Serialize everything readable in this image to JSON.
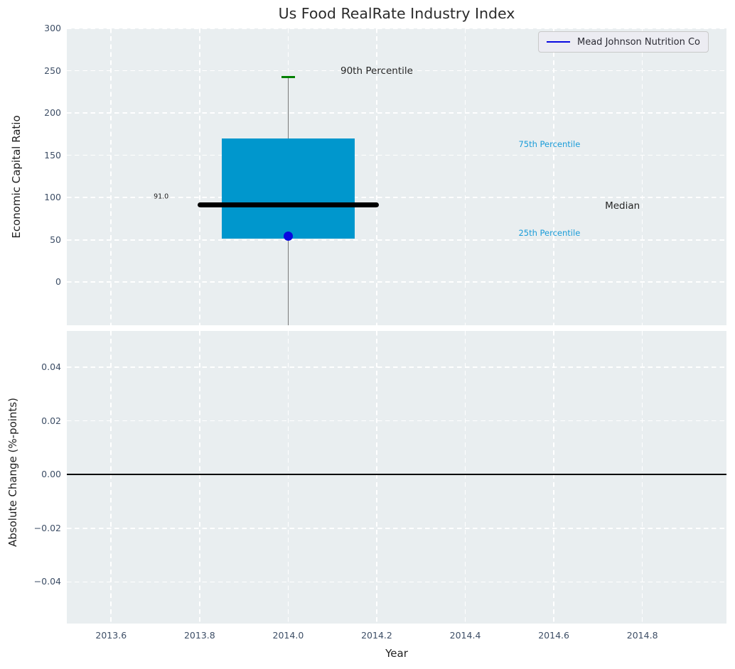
{
  "title": "Us Food RealRate Industry Index",
  "legend": {
    "label": "Mead Johnson Nutrition Co",
    "line_color": "#0808e0"
  },
  "colors": {
    "axes_background": "#e9eef0",
    "grid": "#ffffff",
    "box_fill": "#0097cd",
    "median_line": "#000000",
    "whisker": "#7a7a7a",
    "percentile_cap": "#008000",
    "company_marker": "#0808e0",
    "cyan_label": "#1a9cd8",
    "dark_label": "#262626",
    "tick_label": "#3d4e66",
    "zero_line": "#000000"
  },
  "chart_data": [
    {
      "type": "box",
      "title": "Us Food RealRate Industry Index",
      "ylabel": "Economic Capital Ratio",
      "xlim": [
        2013.5,
        2014.99
      ],
      "ylim": [
        -51,
        300
      ],
      "xticks": [
        2013.6,
        2013.8,
        2014.0,
        2014.2,
        2014.4,
        2014.6,
        2014.8
      ],
      "yticks": [
        0,
        50,
        100,
        150,
        200,
        250,
        300
      ],
      "grid": true,
      "legend_position": "upper right",
      "box": {
        "x": 2014.0,
        "box_width_years": 0.3,
        "q1": 51.5,
        "median": 91.0,
        "q3": 170,
        "p90": 242.5,
        "median_line_width_years": 0.41,
        "cap_width_years": 0.03,
        "whisker_extends_below_axis": true
      },
      "series": [
        {
          "name": "Mead Johnson Nutrition Co",
          "x": [
            2014.0
          ],
          "values": [
            54
          ]
        }
      ],
      "annotations": [
        {
          "name": "annotation-90th-percentile",
          "text": "90th Percentile",
          "x": 2014.2,
          "y": 250,
          "color": "#262626",
          "size": 13.5
        },
        {
          "name": "annotation-75th-percentile",
          "text": "75th Percentile",
          "x": 2014.59,
          "y": 163,
          "color": "#1a9cd8",
          "size": 11.5
        },
        {
          "name": "annotation-median",
          "text": "Median",
          "x": 2014.755,
          "y": 90,
          "color": "#262626",
          "size": 13.5
        },
        {
          "name": "annotation-25th-percentile",
          "text": "25th Percentile",
          "x": 2014.59,
          "y": 58,
          "color": "#1a9cd8",
          "size": 11.5
        },
        {
          "name": "annotation-median-value",
          "text": "91.0",
          "x": 2013.713,
          "y": 101,
          "color": "#1b1b1b",
          "size": 9.5
        }
      ]
    },
    {
      "type": "line",
      "ylabel": "Absolute Change (%-points)",
      "xlabel": "Year",
      "xlim": [
        2013.5,
        2014.99
      ],
      "ylim": [
        -0.0555,
        0.0535
      ],
      "xticks": [
        2013.6,
        2013.8,
        2014.0,
        2014.2,
        2014.4,
        2014.6,
        2014.8
      ],
      "yticks": [
        0.04,
        0.02,
        0.0,
        -0.02,
        -0.04
      ],
      "grid": true,
      "zero_line": 0.0,
      "series": []
    }
  ]
}
